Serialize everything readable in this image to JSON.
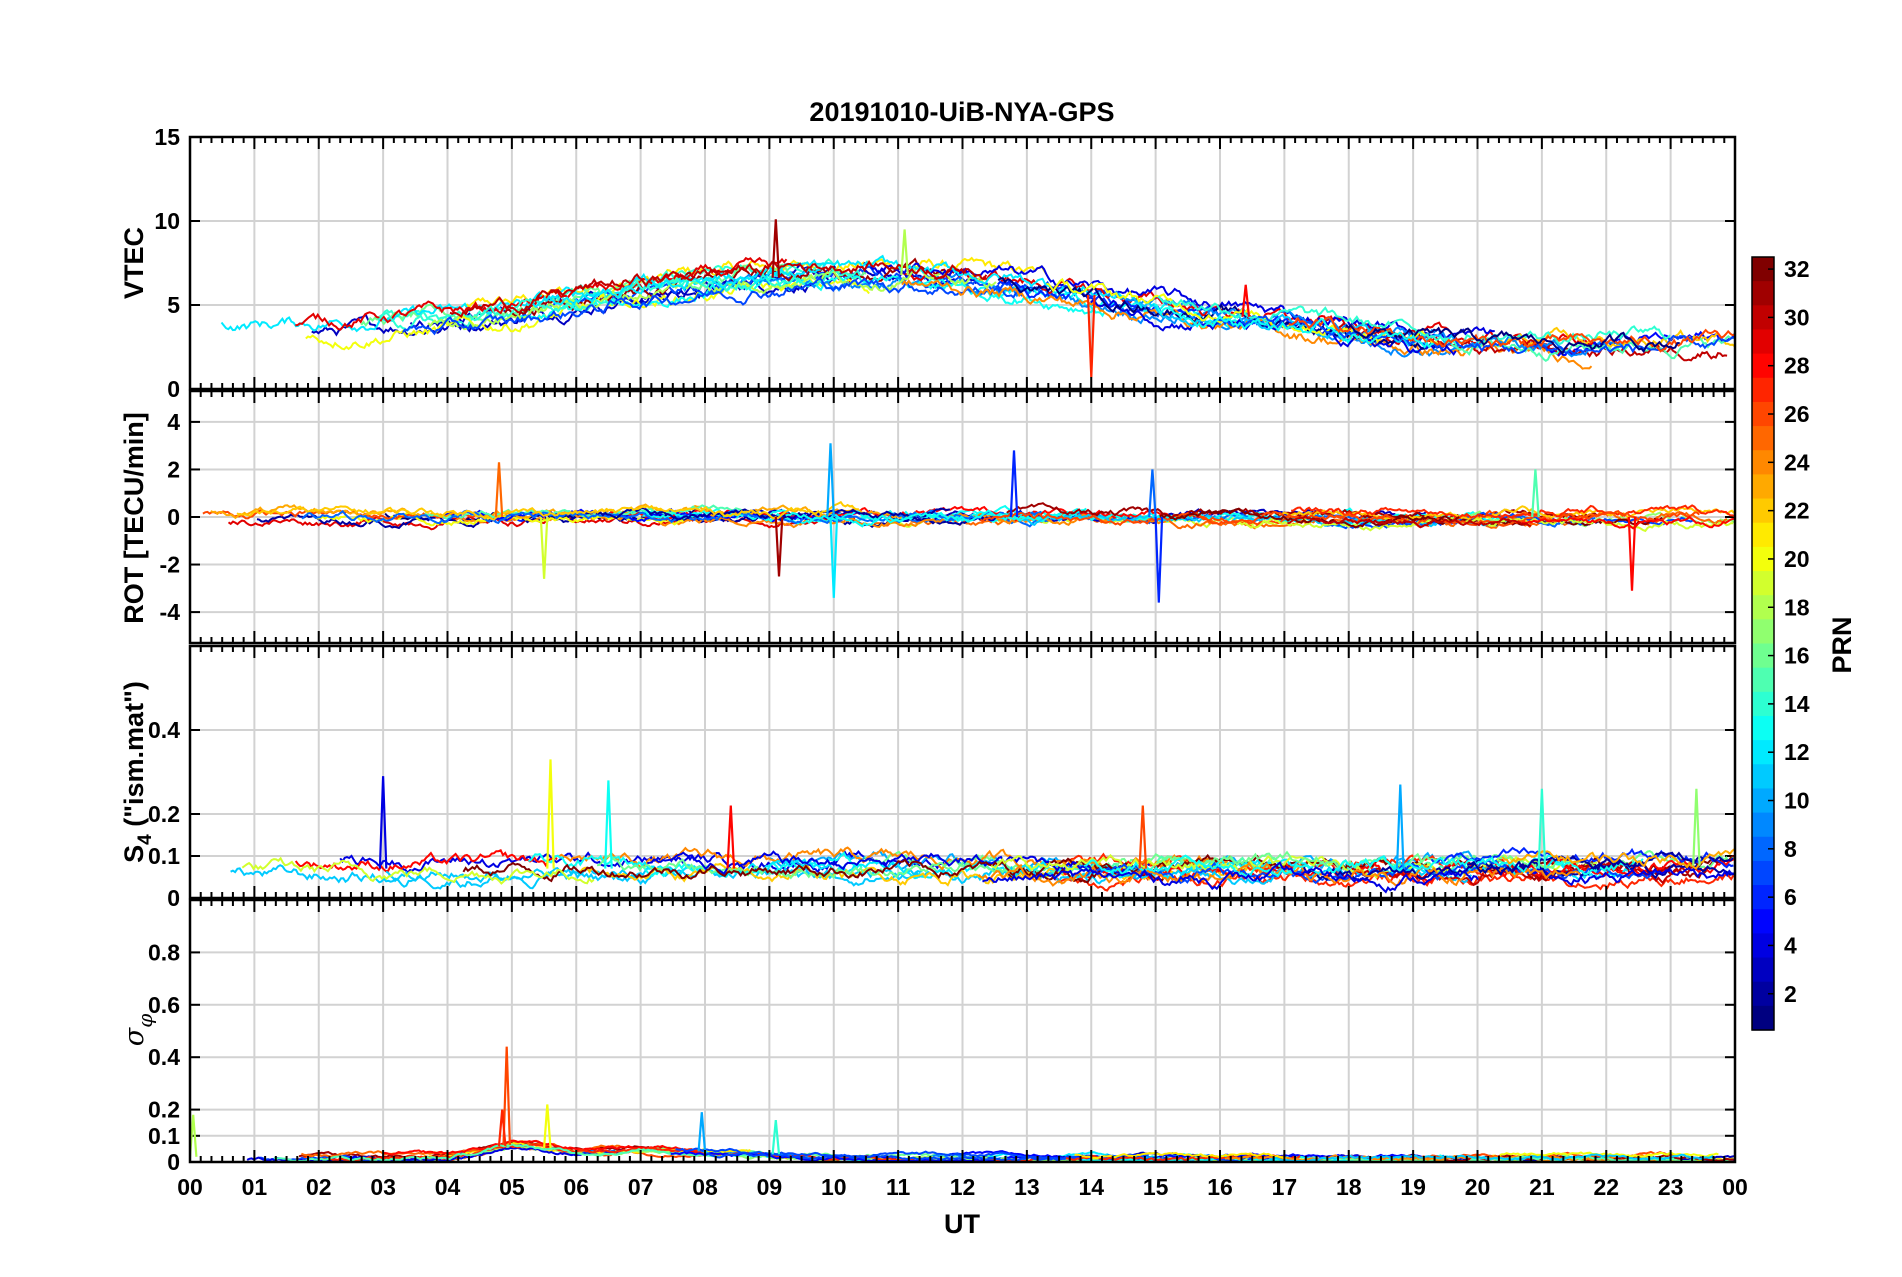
{
  "chart_data": {
    "type": "line",
    "title": "20191010-UiB-NYA-GPS",
    "xlabel": "UT",
    "x_ticks": [
      "00",
      "01",
      "02",
      "03",
      "04",
      "05",
      "06",
      "07",
      "08",
      "09",
      "10",
      "11",
      "12",
      "13",
      "14",
      "15",
      "16",
      "17",
      "18",
      "19",
      "20",
      "21",
      "22",
      "23",
      "00"
    ],
    "xlim": [
      0,
      24
    ],
    "grid": true,
    "colorbar": {
      "label": "PRN",
      "colormap": "jet",
      "range": [
        1,
        32
      ],
      "ticks": [
        "2",
        "4",
        "6",
        "8",
        "10",
        "12",
        "14",
        "16",
        "18",
        "20",
        "22",
        "24",
        "26",
        "28",
        "30",
        "32"
      ]
    },
    "panels": [
      {
        "id": "vtec",
        "ylabel": "VTEC",
        "ylim": [
          0,
          15
        ],
        "yticks": [
          "0",
          "5",
          "10",
          "15"
        ],
        "y_tick_values": [
          0,
          5,
          10,
          15
        ],
        "trend": {
          "x": [
            0,
            1,
            2,
            3,
            4,
            5,
            6,
            7,
            8,
            9,
            10,
            11,
            12,
            13,
            14,
            15,
            16,
            17,
            18,
            19,
            20,
            21,
            22,
            23,
            24
          ],
          "y": [
            3.6,
            3.5,
            3.6,
            3.9,
            4.1,
            4.5,
            5.2,
            5.8,
            6.3,
            6.6,
            6.8,
            6.8,
            6.6,
            6.2,
            5.6,
            5.0,
            4.5,
            4.0,
            3.5,
            3.0,
            2.7,
            2.6,
            2.6,
            2.7,
            2.8
          ]
        },
        "spread": 1.3,
        "spikes": [
          {
            "x": 9.1,
            "y": 10.1,
            "prn": 31
          },
          {
            "x": 11.1,
            "y": 9.5,
            "prn": 18
          },
          {
            "x": 14.0,
            "y": 0.7,
            "prn": 27
          },
          {
            "x": 16.4,
            "y": 6.2,
            "prn": 28
          }
        ]
      },
      {
        "id": "rot",
        "ylabel": "ROT [TECU/min]",
        "ylim": [
          -5.3,
          5.3
        ],
        "yticks": [
          "-4",
          "-2",
          "0",
          "2",
          "4"
        ],
        "y_tick_values": [
          -4,
          -2,
          0,
          2,
          4
        ],
        "trend": {
          "x": [
            0,
            1,
            2,
            3,
            4,
            5,
            6,
            7,
            8,
            9,
            10,
            11,
            12,
            13,
            14,
            15,
            16,
            17,
            18,
            19,
            20,
            21,
            22,
            23,
            24
          ],
          "y": [
            0,
            0,
            0,
            0,
            0,
            0,
            0,
            0,
            0,
            0,
            0,
            0,
            0,
            0,
            0,
            0,
            0,
            0,
            0,
            0,
            0,
            0,
            0,
            0,
            0
          ]
        },
        "spread": 0.55,
        "spikes": [
          {
            "x": 4.8,
            "y": 2.3,
            "prn": 25
          },
          {
            "x": 5.5,
            "y": -2.6,
            "prn": 19
          },
          {
            "x": 9.15,
            "y": -2.5,
            "prn": 31
          },
          {
            "x": 9.95,
            "y": 3.1,
            "prn": 10
          },
          {
            "x": 10.0,
            "y": -3.4,
            "prn": 12
          },
          {
            "x": 12.8,
            "y": 2.8,
            "prn": 6
          },
          {
            "x": 15.05,
            "y": -3.6,
            "prn": 6
          },
          {
            "x": 14.95,
            "y": 2.0,
            "prn": 8
          },
          {
            "x": 20.9,
            "y": 2.0,
            "prn": 15
          },
          {
            "x": 22.4,
            "y": -3.1,
            "prn": 28
          }
        ]
      },
      {
        "id": "s4",
        "ylabel": "S4 (\"ism.mat\")",
        "ylim": [
          0,
          0.6
        ],
        "yticks": [
          "0",
          "0.1",
          "0.2",
          "0.4"
        ],
        "y_tick_values": [
          0,
          0.1,
          0.2,
          0.4
        ],
        "trend": {
          "x": [
            0,
            2,
            4,
            6,
            8,
            10,
            12,
            14,
            16,
            18,
            20,
            22,
            24
          ],
          "y": [
            0.08,
            0.07,
            0.07,
            0.07,
            0.07,
            0.07,
            0.07,
            0.07,
            0.07,
            0.07,
            0.07,
            0.07,
            0.08
          ]
        },
        "spread": 0.05,
        "spikes": [
          {
            "x": 3.0,
            "y": 0.29,
            "prn": 4
          },
          {
            "x": 5.6,
            "y": 0.33,
            "prn": 20
          },
          {
            "x": 6.5,
            "y": 0.28,
            "prn": 13
          },
          {
            "x": 8.4,
            "y": 0.22,
            "prn": 28
          },
          {
            "x": 18.8,
            "y": 0.27,
            "prn": 10
          },
          {
            "x": 21.0,
            "y": 0.26,
            "prn": 14
          },
          {
            "x": 23.4,
            "y": 0.26,
            "prn": 17
          },
          {
            "x": 14.8,
            "y": 0.22,
            "prn": 26
          }
        ]
      },
      {
        "id": "sigma_phi",
        "ylabel": "σφ",
        "ylim": [
          0,
          1
        ],
        "yticks": [
          "0",
          "0.1",
          "0.2",
          "0.4",
          "0.6",
          "0.8"
        ],
        "y_tick_values": [
          0,
          0.1,
          0.2,
          0.4,
          0.6,
          0.8
        ],
        "trend": {
          "x": [
            0,
            4,
            4.5,
            5,
            6,
            7,
            8,
            9,
            10,
            11,
            14,
            18,
            24
          ],
          "y": [
            0.02,
            0.02,
            0.04,
            0.07,
            0.04,
            0.05,
            0.04,
            0.03,
            0.025,
            0.02,
            0.015,
            0.015,
            0.02
          ]
        },
        "spread": 0.025,
        "spikes": [
          {
            "x": 4.92,
            "y": 0.44,
            "prn": 26
          },
          {
            "x": 4.85,
            "y": 0.2,
            "prn": 27
          },
          {
            "x": 5.55,
            "y": 0.22,
            "prn": 20
          },
          {
            "x": 7.95,
            "y": 0.19,
            "prn": 10
          },
          {
            "x": 0.05,
            "y": 0.18,
            "prn": 18
          },
          {
            "x": 9.1,
            "y": 0.16,
            "prn": 14
          }
        ]
      }
    ]
  }
}
